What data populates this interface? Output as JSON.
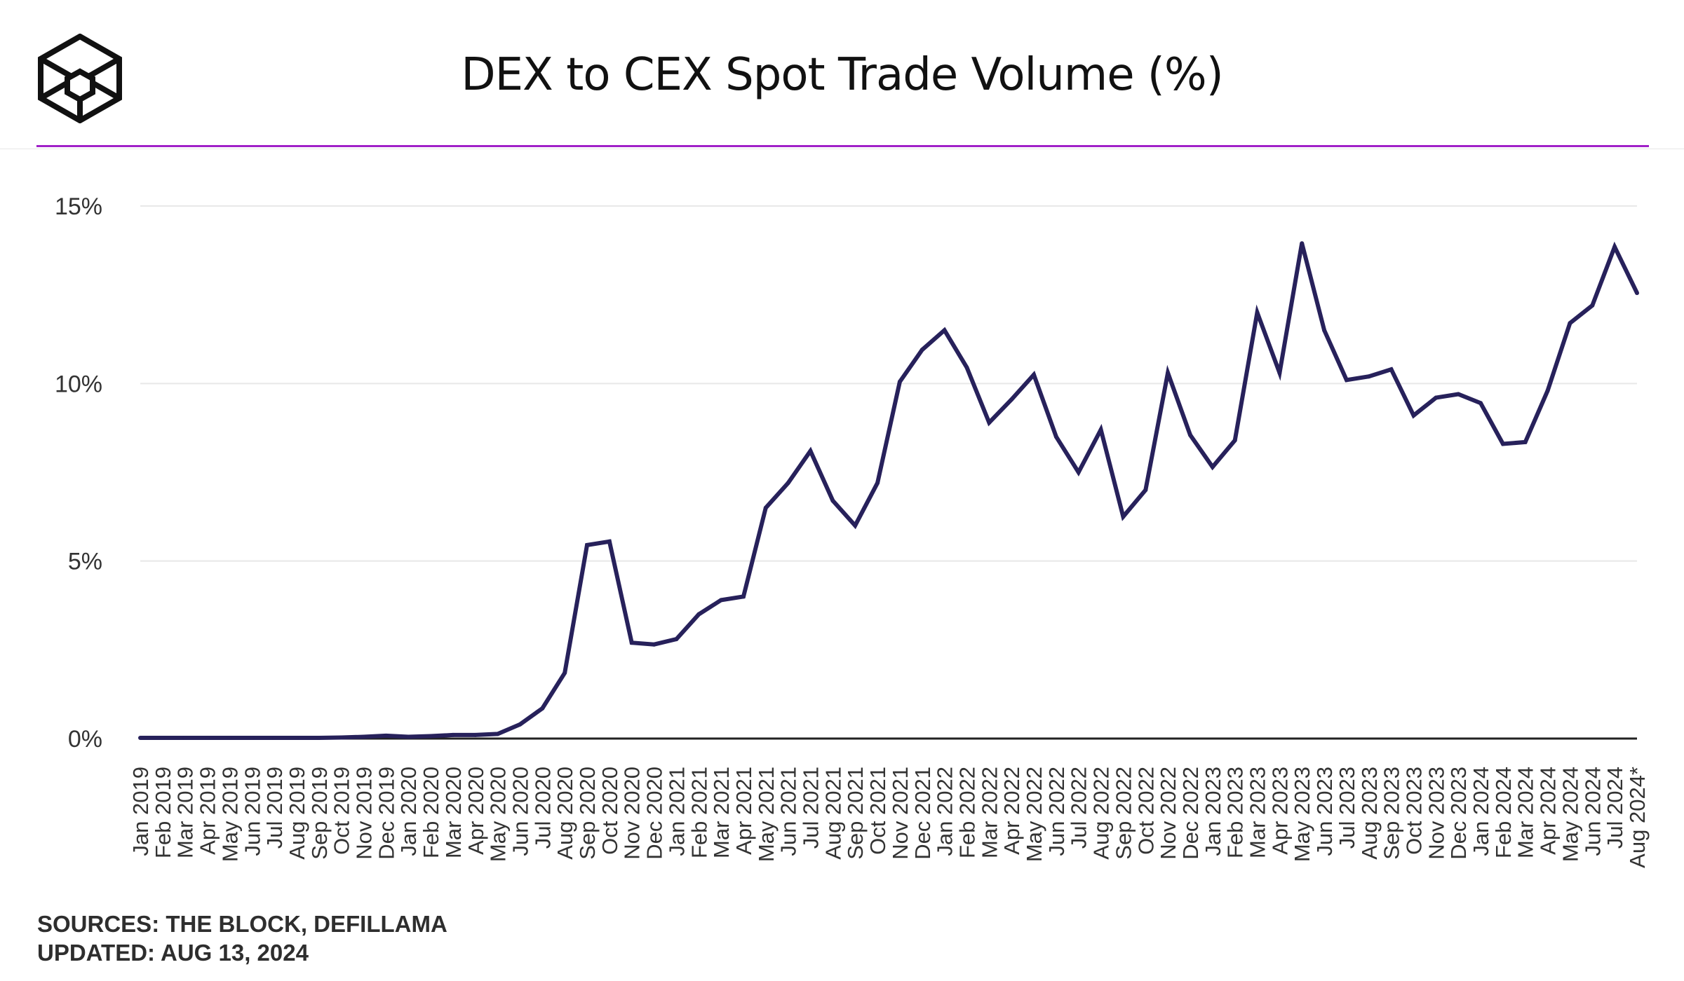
{
  "header": {
    "title": "DEX to CEX Spot Trade Volume (%)",
    "logo_icon": "the-block-cube-logo-icon",
    "accent_color": "#a020c8"
  },
  "chart_data": {
    "type": "line",
    "title": "DEX to CEX Spot Trade Volume (%)",
    "xlabel": "",
    "ylabel": "",
    "ylim": [
      0,
      15
    ],
    "y_ticks": [
      "0%",
      "5%",
      "10%",
      "15%"
    ],
    "y_tick_values": [
      0,
      5,
      10,
      15
    ],
    "grid": true,
    "line_color": "#27215b",
    "categories": [
      "Jan 2019",
      "Feb 2019",
      "Mar 2019",
      "Apr 2019",
      "May 2019",
      "Jun 2019",
      "Jul 2019",
      "Aug 2019",
      "Sep 2019",
      "Oct 2019",
      "Nov 2019",
      "Dec 2019",
      "Jan 2020",
      "Feb 2020",
      "Mar 2020",
      "Apr 2020",
      "May 2020",
      "Jun 2020",
      "Jul 2020",
      "Aug 2020",
      "Sep 2020",
      "Oct 2020",
      "Nov 2020",
      "Dec 2020",
      "Jan 2021",
      "Feb 2021",
      "Mar 2021",
      "Apr 2021",
      "May 2021",
      "Jun 2021",
      "Jul 2021",
      "Aug 2021",
      "Sep 2021",
      "Oct 2021",
      "Nov 2021",
      "Dec 2021",
      "Jan 2022",
      "Feb 2022",
      "Mar 2022",
      "Apr 2022",
      "May 2022",
      "Jun 2022",
      "Jul 2022",
      "Aug 2022",
      "Sep 2022",
      "Oct 2022",
      "Nov 2022",
      "Dec 2022",
      "Jan 2023",
      "Feb 2023",
      "Mar 2023",
      "Apr 2023",
      "May 2023",
      "Jun 2023",
      "Jul 2023",
      "Aug 2023",
      "Sep 2023",
      "Oct 2023",
      "Nov 2023",
      "Dec 2023",
      "Jan 2024",
      "Feb 2024",
      "Mar 2024",
      "Apr 2024",
      "May 2024",
      "Jun 2024",
      "Jul 2024",
      "Aug 2024*"
    ],
    "series": [
      {
        "name": "DEX to CEX Spot Trade Volume (%)",
        "values": [
          0.02,
          0.02,
          0.02,
          0.02,
          0.02,
          0.02,
          0.02,
          0.02,
          0.02,
          0.03,
          0.05,
          0.08,
          0.05,
          0.07,
          0.1,
          0.1,
          0.13,
          0.4,
          0.85,
          1.85,
          5.45,
          5.55,
          2.7,
          2.65,
          2.8,
          3.5,
          3.9,
          4.0,
          6.5,
          7.2,
          8.1,
          6.7,
          6.0,
          7.2,
          10.05,
          10.95,
          11.5,
          10.45,
          8.9,
          9.55,
          10.25,
          8.5,
          7.5,
          8.7,
          6.25,
          7.0,
          10.3,
          8.55,
          7.65,
          8.4,
          12.0,
          10.3,
          13.95,
          11.5,
          10.1,
          10.2,
          10.4,
          9.1,
          9.6,
          9.7,
          9.45,
          8.3,
          8.35,
          9.8,
          11.7,
          12.2,
          13.85,
          12.55
        ]
      }
    ]
  },
  "footer": {
    "sources": "SOURCES: THE BLOCK, DEFILLAMA",
    "updated": "UPDATED: AUG 13, 2024"
  }
}
